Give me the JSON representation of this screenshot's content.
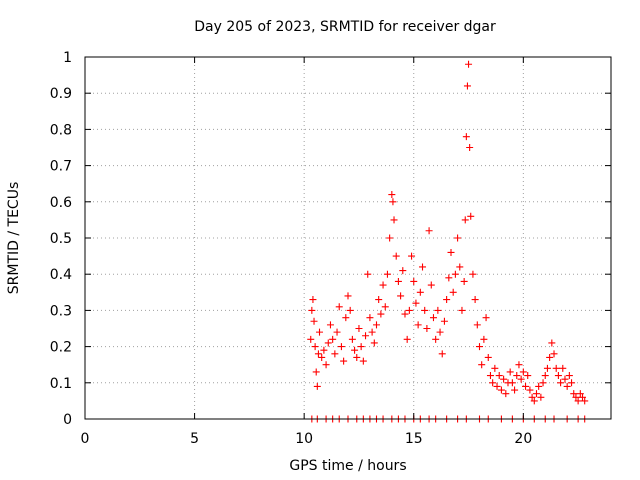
{
  "chart_data": {
    "type": "scatter",
    "title": "Day 205 of 2023, SRMTID for receiver dgar",
    "xlabel": "GPS time / hours",
    "ylabel": "SRMTID / TECUs",
    "xlim": [
      0,
      24
    ],
    "ylim": [
      0,
      1
    ],
    "grid": true,
    "marker": "+",
    "color": "#ff0000",
    "x_ticks": [
      0,
      5,
      10,
      15,
      20
    ],
    "x_tick_labels": [
      "0",
      "5",
      "10",
      "15",
      "20"
    ],
    "y_ticks": [
      0,
      0.1,
      0.2,
      0.3,
      0.4,
      0.5,
      0.6,
      0.7,
      0.8,
      0.9,
      1
    ],
    "y_tick_labels": [
      "0",
      "0.1",
      "0.2",
      "0.3",
      "0.4",
      "0.5",
      "0.6",
      "0.7",
      "0.8",
      "0.9",
      "1"
    ],
    "series": [
      {
        "name": "SRMTID",
        "points": [
          [
            10.3,
            0.22
          ],
          [
            10.35,
            0.3
          ],
          [
            10.4,
            0.33
          ],
          [
            10.45,
            0.27
          ],
          [
            10.5,
            0.2
          ],
          [
            10.55,
            0.13
          ],
          [
            10.6,
            0.09
          ],
          [
            10.65,
            0.18
          ],
          [
            10.7,
            0.24
          ],
          [
            10.8,
            0.17
          ],
          [
            10.9,
            0.19
          ],
          [
            11.0,
            0.15
          ],
          [
            11.1,
            0.21
          ],
          [
            11.2,
            0.26
          ],
          [
            11.3,
            0.22
          ],
          [
            11.4,
            0.18
          ],
          [
            11.5,
            0.24
          ],
          [
            11.6,
            0.31
          ],
          [
            11.7,
            0.2
          ],
          [
            11.8,
            0.16
          ],
          [
            11.9,
            0.28
          ],
          [
            12.0,
            0.34
          ],
          [
            12.1,
            0.3
          ],
          [
            12.2,
            0.22
          ],
          [
            12.3,
            0.19
          ],
          [
            12.4,
            0.17
          ],
          [
            12.5,
            0.25
          ],
          [
            12.6,
            0.2
          ],
          [
            12.7,
            0.16
          ],
          [
            12.8,
            0.23
          ],
          [
            12.9,
            0.4
          ],
          [
            13.0,
            0.28
          ],
          [
            13.1,
            0.24
          ],
          [
            13.2,
            0.21
          ],
          [
            13.3,
            0.26
          ],
          [
            13.4,
            0.33
          ],
          [
            13.5,
            0.29
          ],
          [
            13.6,
            0.37
          ],
          [
            13.7,
            0.31
          ],
          [
            13.8,
            0.4
          ],
          [
            13.9,
            0.5
          ],
          [
            14.0,
            0.62
          ],
          [
            14.05,
            0.6
          ],
          [
            14.1,
            0.55
          ],
          [
            14.2,
            0.45
          ],
          [
            14.3,
            0.38
          ],
          [
            14.4,
            0.34
          ],
          [
            14.5,
            0.41
          ],
          [
            14.6,
            0.29
          ],
          [
            14.7,
            0.22
          ],
          [
            14.8,
            0.3
          ],
          [
            14.9,
            0.45
          ],
          [
            15.0,
            0.38
          ],
          [
            15.1,
            0.32
          ],
          [
            15.2,
            0.26
          ],
          [
            15.3,
            0.35
          ],
          [
            15.4,
            0.42
          ],
          [
            15.5,
            0.3
          ],
          [
            15.6,
            0.25
          ],
          [
            15.7,
            0.52
          ],
          [
            15.8,
            0.37
          ],
          [
            15.9,
            0.28
          ],
          [
            16.0,
            0.22
          ],
          [
            16.1,
            0.3
          ],
          [
            16.2,
            0.24
          ],
          [
            16.3,
            0.18
          ],
          [
            16.4,
            0.27
          ],
          [
            16.5,
            0.33
          ],
          [
            16.6,
            0.39
          ],
          [
            16.7,
            0.46
          ],
          [
            16.8,
            0.35
          ],
          [
            16.9,
            0.4
          ],
          [
            17.0,
            0.5
          ],
          [
            17.1,
            0.42
          ],
          [
            17.2,
            0.3
          ],
          [
            17.3,
            0.38
          ],
          [
            17.35,
            0.55
          ],
          [
            17.4,
            0.78
          ],
          [
            17.45,
            0.92
          ],
          [
            17.5,
            0.98
          ],
          [
            17.55,
            0.75
          ],
          [
            17.6,
            0.56
          ],
          [
            17.7,
            0.4
          ],
          [
            17.8,
            0.33
          ],
          [
            17.9,
            0.26
          ],
          [
            18.0,
            0.2
          ],
          [
            18.1,
            0.15
          ],
          [
            18.2,
            0.22
          ],
          [
            18.3,
            0.28
          ],
          [
            18.4,
            0.17
          ],
          [
            18.5,
            0.12
          ],
          [
            18.6,
            0.1
          ],
          [
            18.7,
            0.14
          ],
          [
            18.8,
            0.09
          ],
          [
            18.9,
            0.12
          ],
          [
            19.0,
            0.08
          ],
          [
            19.1,
            0.11
          ],
          [
            19.2,
            0.07
          ],
          [
            19.3,
            0.1
          ],
          [
            19.4,
            0.13
          ],
          [
            19.5,
            0.1
          ],
          [
            19.6,
            0.08
          ],
          [
            19.7,
            0.12
          ],
          [
            19.8,
            0.15
          ],
          [
            19.9,
            0.11
          ],
          [
            20.0,
            0.13
          ],
          [
            20.1,
            0.09
          ],
          [
            20.2,
            0.12
          ],
          [
            20.3,
            0.08
          ],
          [
            20.4,
            0.06
          ],
          [
            20.5,
            0.05
          ],
          [
            20.6,
            0.07
          ],
          [
            20.7,
            0.09
          ],
          [
            20.8,
            0.06
          ],
          [
            20.9,
            0.1
          ],
          [
            21.0,
            0.12
          ],
          [
            21.1,
            0.14
          ],
          [
            21.2,
            0.17
          ],
          [
            21.3,
            0.21
          ],
          [
            21.4,
            0.18
          ],
          [
            21.5,
            0.14
          ],
          [
            21.6,
            0.12
          ],
          [
            21.7,
            0.1
          ],
          [
            21.8,
            0.14
          ],
          [
            21.9,
            0.11
          ],
          [
            22.0,
            0.09
          ],
          [
            22.1,
            0.12
          ],
          [
            22.2,
            0.1
          ],
          [
            22.3,
            0.07
          ],
          [
            22.4,
            0.06
          ],
          [
            22.5,
            0.05
          ],
          [
            22.6,
            0.07
          ],
          [
            22.7,
            0.06
          ],
          [
            22.8,
            0.05
          ]
        ],
        "zero_points": [
          10.35,
          10.6,
          11.0,
          11.3,
          11.6,
          12.0,
          12.4,
          12.7,
          13.0,
          13.3,
          13.6,
          14.0,
          14.3,
          14.6,
          15.0,
          15.3,
          15.7,
          16.0,
          16.5,
          17.0,
          17.4,
          18.0,
          18.4,
          19.0,
          19.5,
          20.0,
          20.5,
          21.0,
          21.4,
          22.0,
          22.5,
          22.8
        ]
      }
    ]
  }
}
